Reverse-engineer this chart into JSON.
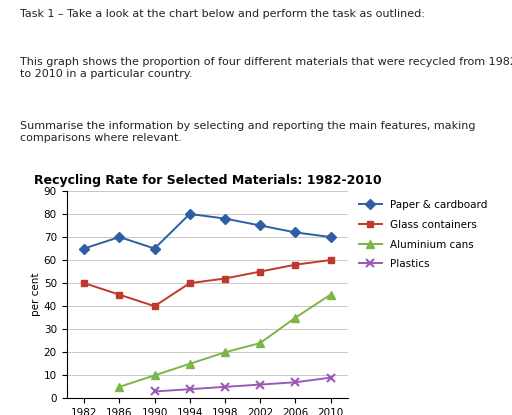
{
  "title": "Recycling Rate for Selected Materials: 1982-2010",
  "ylabel": "per cent",
  "years": [
    1982,
    1986,
    1990,
    1994,
    1998,
    2002,
    2006,
    2010
  ],
  "series": {
    "Paper & cardboard": {
      "values": [
        65,
        70,
        65,
        80,
        78,
        75,
        72,
        70
      ],
      "color": "#2e5fa3",
      "marker": "D",
      "markersize": 5
    },
    "Glass containers": {
      "values": [
        50,
        45,
        40,
        50,
        52,
        55,
        58,
        60
      ],
      "color": "#c0392b",
      "marker": "s",
      "markersize": 5
    },
    "Aluminium cans": {
      "values": [
        null,
        5,
        10,
        15,
        20,
        24,
        35,
        45
      ],
      "color": "#7ab648",
      "marker": "^",
      "markersize": 6
    },
    "Plastics": {
      "values": [
        null,
        null,
        3,
        4,
        5,
        6,
        7,
        9
      ],
      "color": "#9b59b6",
      "marker": "x",
      "markersize": 6,
      "markeredgewidth": 1.5
    }
  },
  "ylim": [
    0,
    90
  ],
  "yticks": [
    0,
    10,
    20,
    30,
    40,
    50,
    60,
    70,
    80,
    90
  ],
  "xticks": [
    1982,
    1986,
    1990,
    1994,
    1998,
    2002,
    2006,
    2010
  ],
  "background_color": "#ffffff",
  "grid_color": "#c8c8c8",
  "title_fontsize": 9,
  "axis_fontsize": 7.5,
  "legend_fontsize": 7.5,
  "text_line1": "Task 1 – Take a look at the chart below and perform the task as outlined:",
  "text_line2": "This graph shows the proportion of four different materials that were recycled from 1982\nto 2010 in a particular country.",
  "text_line3": "Summarise the information by selecting and reporting the main features, making\ncomparisons where relevant."
}
